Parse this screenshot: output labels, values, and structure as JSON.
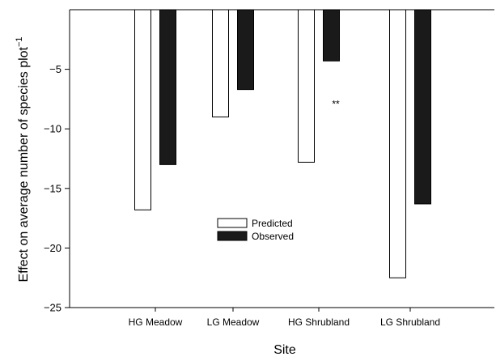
{
  "chart_data": {
    "type": "bar",
    "xlabel": "Site",
    "ylabel": "Effect on average number of species plot",
    "ylabel_superscript": "−1",
    "ylim": [
      -25,
      0
    ],
    "yticks": [
      -5,
      -10,
      -15,
      -20,
      -25
    ],
    "ytick_labels": [
      "−5",
      "−10",
      "−15",
      "−20",
      "−25"
    ],
    "categories": [
      "HG Meadow",
      "LG Meadow",
      "HG Shrubland",
      "LG Shrubland"
    ],
    "series": [
      {
        "name": "Predicted",
        "values": [
          -16.8,
          -9.0,
          -12.8,
          -22.5
        ],
        "fill": "#ffffff"
      },
      {
        "name": "Observed",
        "values": [
          -13.0,
          -6.7,
          -4.3,
          -16.3
        ],
        "fill": "#1a1a1a"
      }
    ],
    "annotations": [
      {
        "text": "**",
        "category": "HG Shrubland",
        "y": -7.9
      }
    ],
    "legend_position": "center-lower",
    "grid": false
  }
}
